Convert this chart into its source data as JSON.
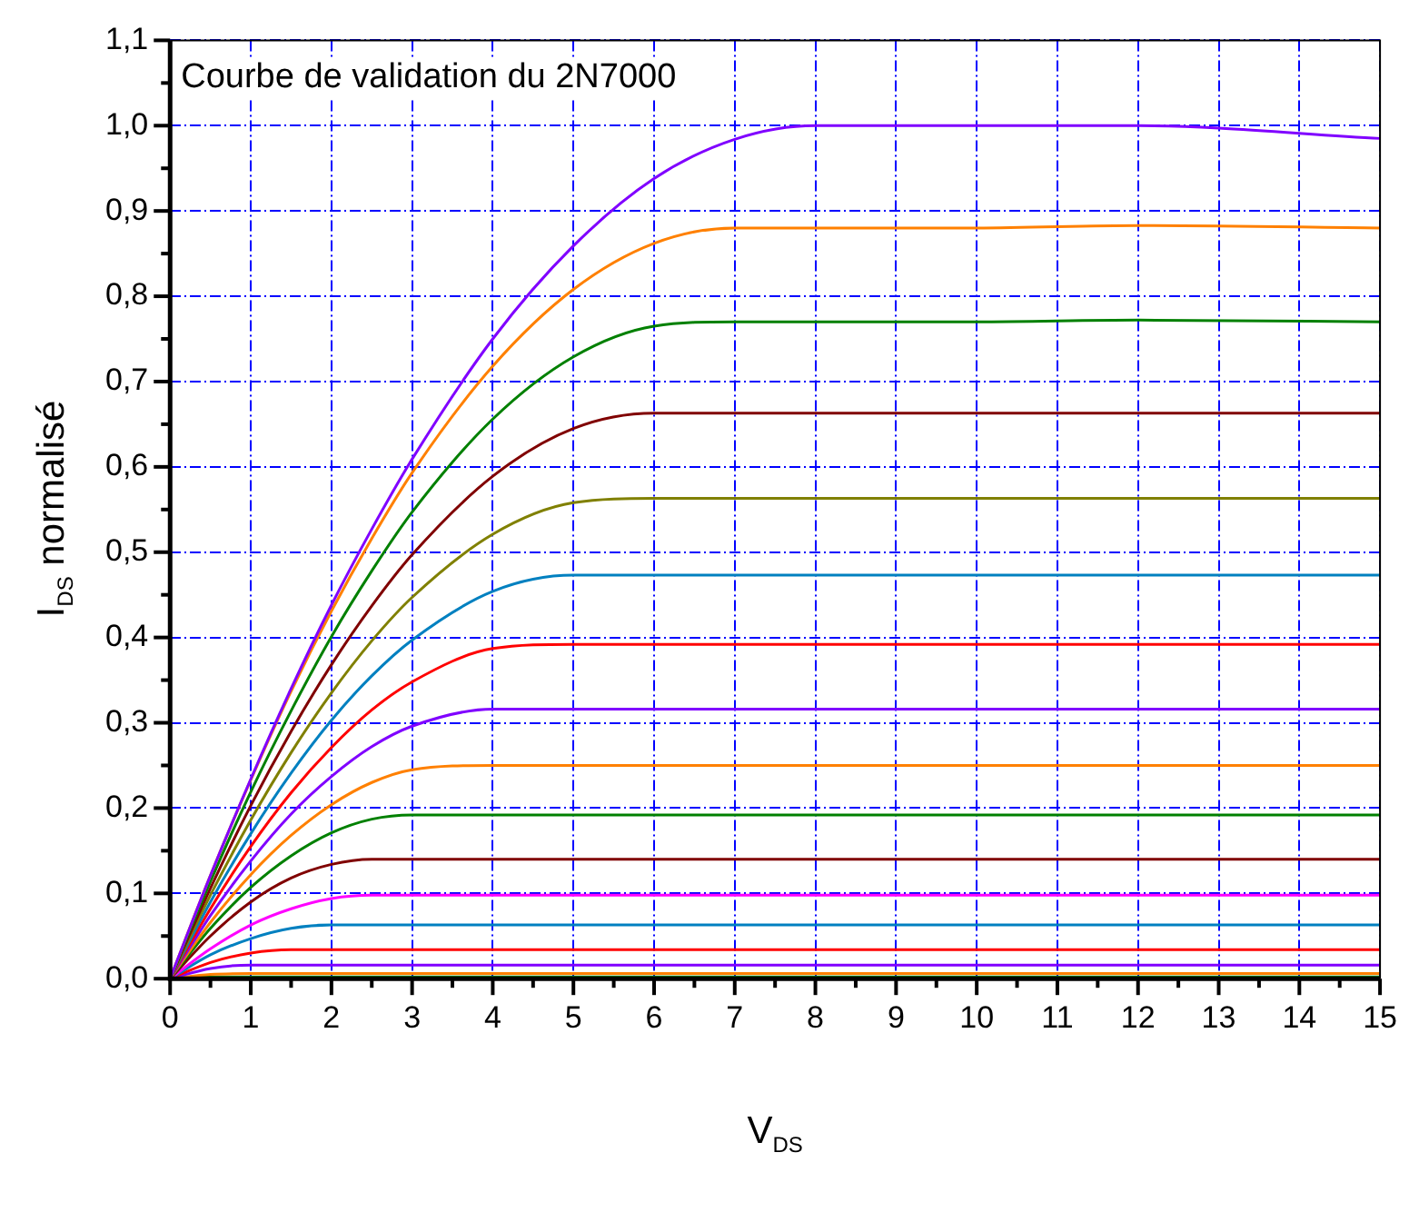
{
  "chart_data": {
    "type": "line",
    "title": "Courbe de validation du 2N7000",
    "xlabel": "V$_{DS}$",
    "ylabel": "I$_{DS}$ normalisé",
    "x": [
      0,
      0.5,
      1,
      1.5,
      2,
      2.5,
      3,
      4,
      5,
      6,
      7,
      8,
      10,
      12,
      15
    ],
    "series": [
      {
        "color": "#8000ff",
        "values": [
          0,
          0.121,
          0.234,
          0.34,
          0.438,
          0.527,
          0.609,
          0.75,
          0.859,
          0.938,
          0.984,
          1,
          1,
          1,
          0.985
        ]
      },
      {
        "color": "#ff8000",
        "values": [
          0,
          0.121,
          0.233,
          0.337,
          0.431,
          0.516,
          0.593,
          0.718,
          0.808,
          0.862,
          0.88,
          0.88,
          0.88,
          0.883,
          0.88
        ]
      },
      {
        "color": "#008000",
        "values": [
          0,
          0.114,
          0.219,
          0.314,
          0.401,
          0.478,
          0.547,
          0.656,
          0.729,
          0.765,
          0.77,
          0.77,
          0.77,
          0.772,
          0.77
        ]
      },
      {
        "color": "#800000",
        "values": [
          0,
          0.106,
          0.203,
          0.29,
          0.368,
          0.437,
          0.497,
          0.589,
          0.645,
          0.663,
          0.663,
          0.663,
          0.663,
          0.663,
          0.663
        ]
      },
      {
        "color": "#808000",
        "values": [
          0,
          0.098,
          0.186,
          0.265,
          0.335,
          0.396,
          0.447,
          0.521,
          0.558,
          0.563,
          0.563,
          0.563,
          0.563,
          0.563,
          0.563
        ]
      },
      {
        "color": "#0080c0",
        "values": [
          0,
          0.09,
          0.17,
          0.241,
          0.303,
          0.355,
          0.397,
          0.454,
          0.473,
          0.473,
          0.473,
          0.473,
          0.473,
          0.473,
          0.473
        ]
      },
      {
        "color": "#ff0000",
        "values": [
          0,
          0.082,
          0.155,
          0.218,
          0.271,
          0.315,
          0.348,
          0.387,
          0.392,
          0.392,
          0.392,
          0.392,
          0.392,
          0.392,
          0.392
        ]
      },
      {
        "color": "#8000ff",
        "values": [
          0,
          0.074,
          0.138,
          0.193,
          0.237,
          0.272,
          0.296,
          0.316,
          0.316,
          0.316,
          0.316,
          0.316,
          0.316,
          0.316,
          0.316
        ]
      },
      {
        "color": "#ff8000",
        "values": [
          0,
          0.066,
          0.122,
          0.168,
          0.204,
          0.23,
          0.245,
          0.25,
          0.25,
          0.25,
          0.25,
          0.25,
          0.25,
          0.25,
          0.25
        ]
      },
      {
        "color": "#008000",
        "values": [
          0,
          0.059,
          0.107,
          0.144,
          0.171,
          0.187,
          0.192,
          0.192,
          0.192,
          0.192,
          0.192,
          0.192,
          0.192,
          0.192,
          0.192
        ]
      },
      {
        "color": "#800000",
        "values": [
          0,
          0.05,
          0.09,
          0.118,
          0.134,
          0.14,
          0.14,
          0.14,
          0.14,
          0.14,
          0.14,
          0.14,
          0.14,
          0.14,
          0.14
        ]
      },
      {
        "color": "#ff00ff",
        "values": [
          0,
          0.035,
          0.063,
          0.082,
          0.094,
          0.098,
          0.098,
          0.098,
          0.098,
          0.098,
          0.098,
          0.098,
          0.098,
          0.098,
          0.098
        ]
      },
      {
        "color": "#0080c0",
        "values": [
          0,
          0.028,
          0.047,
          0.059,
          0.063,
          0.063,
          0.063,
          0.063,
          0.063,
          0.063,
          0.063,
          0.063,
          0.063,
          0.063,
          0.063
        ]
      },
      {
        "color": "#ff0000",
        "values": [
          0,
          0.019,
          0.03,
          0.034,
          0.034,
          0.034,
          0.034,
          0.034,
          0.034,
          0.034,
          0.034,
          0.034,
          0.034,
          0.034,
          0.034
        ]
      },
      {
        "color": "#8000ff",
        "values": [
          0,
          0.012,
          0.016,
          0.016,
          0.016,
          0.016,
          0.016,
          0.016,
          0.016,
          0.016,
          0.016,
          0.016,
          0.016,
          0.016,
          0.016
        ]
      },
      {
        "color": "#ff8000",
        "values": [
          0,
          0.005,
          0.006,
          0.006,
          0.006,
          0.006,
          0.006,
          0.006,
          0.006,
          0.006,
          0.006,
          0.006,
          0.006,
          0.006,
          0.006
        ]
      },
      {
        "color": "#008000",
        "values": [
          0,
          0.002,
          0.002,
          0.002,
          0.002,
          0.002,
          0.002,
          0.002,
          0.002,
          0.002,
          0.002,
          0.002,
          0.002,
          0.002,
          0.002
        ]
      }
    ],
    "xlim": [
      0,
      15
    ],
    "ylim": [
      0,
      1.1
    ],
    "xticks": [
      0,
      {
        "value": 0.5,
        "label": null
      },
      1,
      {
        "value": 1.5,
        "label": null
      },
      2,
      {
        "value": 2.5,
        "label": null
      },
      3,
      {
        "value": 3.5,
        "label": null
      },
      4,
      {
        "value": 4.5,
        "label": null
      },
      5,
      {
        "value": 5.5,
        "label": null
      },
      6,
      {
        "value": 6.5,
        "label": null
      },
      7,
      {
        "value": 7.5,
        "label": null
      },
      8,
      {
        "value": 8.5,
        "label": null
      },
      9,
      {
        "value": 9.5,
        "label": null
      },
      10,
      {
        "value": 10.5,
        "label": null
      },
      11,
      {
        "value": 11.5,
        "label": null
      },
      12,
      {
        "value": 12.5,
        "label": null
      },
      13,
      {
        "value": 13.5,
        "label": null
      },
      14,
      {
        "value": 14.5,
        "label": null
      },
      15
    ],
    "yticks": [
      {
        "value": 0,
        "label": "0,0"
      },
      {
        "value": 0.05,
        "label": null
      },
      {
        "value": 0.1,
        "label": "0,1"
      },
      {
        "value": 0.15,
        "label": null
      },
      {
        "value": 0.2,
        "label": "0,2"
      },
      {
        "value": 0.25,
        "label": null
      },
      {
        "value": 0.3,
        "label": "0,3"
      },
      {
        "value": 0.35,
        "label": null
      },
      {
        "value": 0.4,
        "label": "0,4"
      },
      {
        "value": 0.45,
        "label": null
      },
      {
        "value": 0.5,
        "label": "0,5"
      },
      {
        "value": 0.55,
        "label": null
      },
      {
        "value": 0.6,
        "label": "0,6"
      },
      {
        "value": 0.65,
        "label": null
      },
      {
        "value": 0.7,
        "label": "0,7"
      },
      {
        "value": 0.75,
        "label": null
      },
      {
        "value": 0.8,
        "label": "0,8"
      },
      {
        "value": 0.85,
        "label": null
      },
      {
        "value": 0.9,
        "label": "0,9"
      },
      {
        "value": 0.95,
        "label": null
      },
      {
        "value": 1,
        "label": "1,0"
      },
      {
        "value": 1.05,
        "label": null
      },
      {
        "value": 1.1,
        "label": "1,1"
      }
    ],
    "grid": true,
    "marker": "none",
    "line_style": "solid"
  }
}
